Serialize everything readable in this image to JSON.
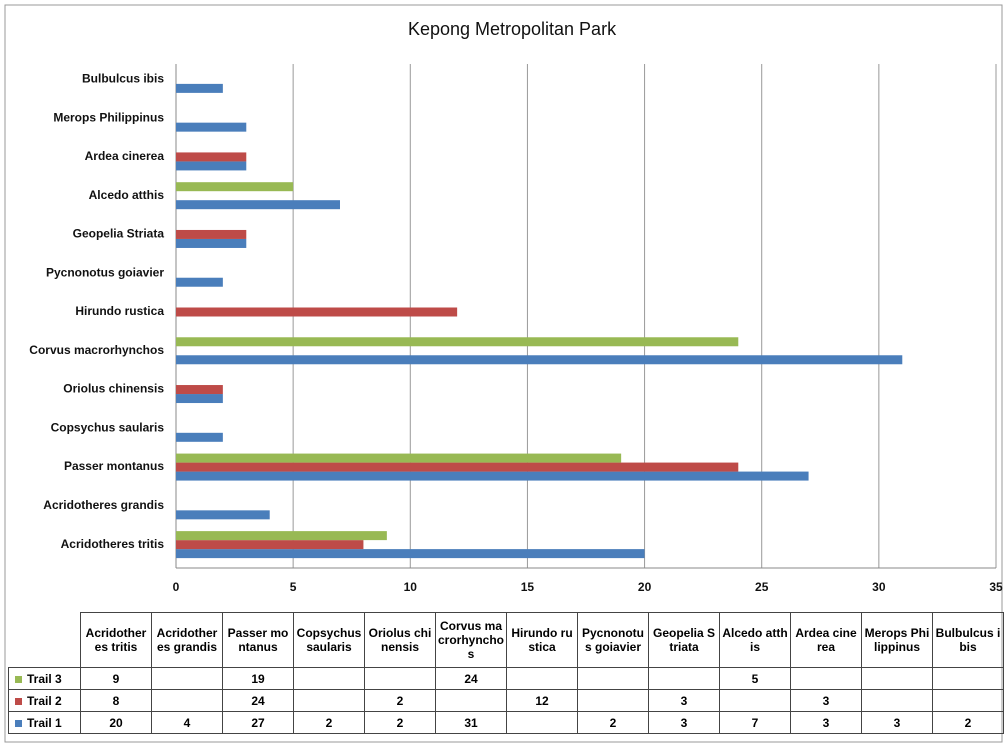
{
  "chart_data": {
    "type": "barh",
    "title": "Kepong Metropolitan Park",
    "categories": [
      "Acridotheres tritis",
      "Acridotheres grandis",
      "Passer montanus",
      "Copsychus saularis",
      "Oriolus chinensis",
      "Corvus macrorhynchos",
      "Hirundo rustica",
      "Pycnonotus goiavier",
      "Geopelia Striata",
      "Alcedo atthis",
      "Ardea cinerea",
      "Merops Philippinus",
      "Bulbulcus ibis"
    ],
    "series": [
      {
        "name": "Trail 1",
        "color": "#4a7ebb",
        "values": [
          20,
          4,
          27,
          2,
          2,
          31,
          null,
          2,
          3,
          7,
          3,
          3,
          2
        ]
      },
      {
        "name": "Trail 2",
        "color": "#be4b48",
        "values": [
          8,
          null,
          24,
          null,
          2,
          null,
          12,
          null,
          3,
          null,
          3,
          null,
          null
        ]
      },
      {
        "name": "Trail 3",
        "color": "#98b954",
        "values": [
          9,
          null,
          19,
          null,
          null,
          24,
          null,
          null,
          null,
          5,
          null,
          null,
          null
        ]
      }
    ],
    "xlim": [
      0,
      35
    ],
    "xticks": [
      0,
      5,
      10,
      15,
      20,
      25,
      30,
      35
    ],
    "grid": true
  }
}
